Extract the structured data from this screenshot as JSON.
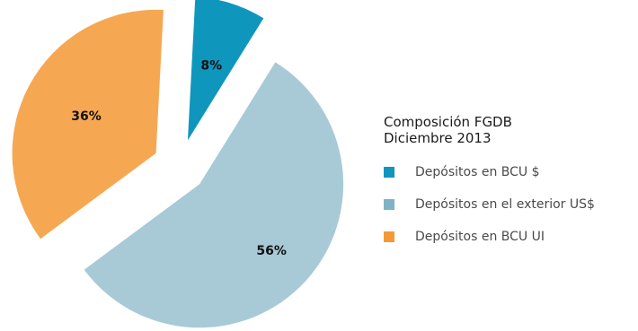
{
  "chart_data": {
    "type": "pie",
    "title": "Composición FGDB",
    "subtitle": "Diciembre 2013",
    "legend_placement": "right",
    "slices": [
      {
        "name": "Depósitos en BCU $",
        "value": 8,
        "label": "8%",
        "color": "#0f96bd",
        "legend_color": "#0f96bd"
      },
      {
        "name": "Depósitos en el exterior US$",
        "value": 56,
        "label": "56%",
        "color": "#a8cad7",
        "legend_color": "#7fb3c5"
      },
      {
        "name": "Depósitos en BCU UI",
        "value": 36,
        "label": "36%",
        "color": "#f5a851",
        "legend_color": "#f39a36"
      }
    ]
  }
}
